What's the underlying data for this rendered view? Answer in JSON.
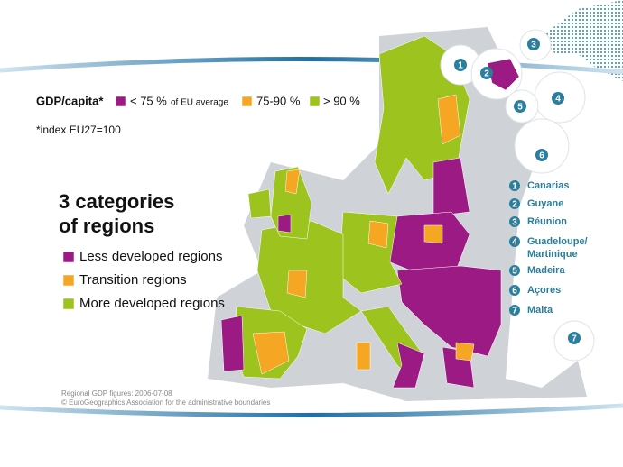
{
  "legend": {
    "title": "GDP/capita*",
    "items": [
      {
        "label": "< 75 %",
        "note": "of EU average",
        "color": "#9c1a84"
      },
      {
        "label": "75-90 %",
        "color": "#f5a623"
      },
      {
        "label": "> 90 %",
        "color": "#9cc31e"
      }
    ],
    "footnote": "*index EU27=100"
  },
  "heading": {
    "line1": "3 categories",
    "line2": "of regions"
  },
  "categories": [
    "Less developed regions",
    "Transition regions",
    "More developed regions"
  ],
  "outermost_regions": [
    {
      "number": "1",
      "name": "Canarias"
    },
    {
      "number": "2",
      "name": "Guyane"
    },
    {
      "number": "3",
      "name": "Réunion"
    },
    {
      "number": "4",
      "name": "Guadeloupe/",
      "name2": "Martinique"
    },
    {
      "number": "5",
      "name": "Madeira"
    },
    {
      "number": "6",
      "name": "Açores"
    },
    {
      "number": "7",
      "name": "Malta"
    }
  ],
  "source": {
    "line1": "Regional GDP figures: 2006-07-08",
    "line2": "© EuroGeographics Association for the administrative boundaries"
  }
}
